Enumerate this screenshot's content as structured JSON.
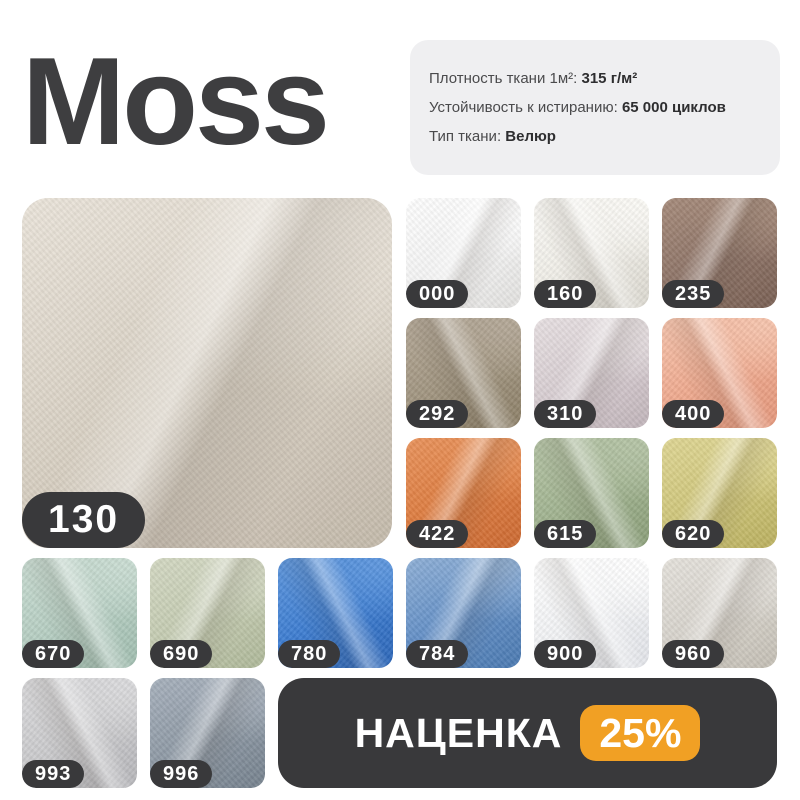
{
  "title": "Moss",
  "specs": {
    "items": [
      {
        "label": "Плотность ткани 1м²:",
        "value": "315 г/м²"
      },
      {
        "label": "Устойчивость к истиранию:",
        "value": "65 000 циклов"
      },
      {
        "label": "Тип ткани:",
        "value": "Велюр"
      }
    ]
  },
  "main_swatch": {
    "code": "130",
    "colors": {
      "light": "#EAE4DA",
      "mid": "#D9D1C4",
      "dark": "#C4BAAB"
    }
  },
  "swatches": [
    {
      "code": "000",
      "colors": {
        "light": "#FEFEFE",
        "mid": "#F5F5F5",
        "dark": "#E2E1DF"
      }
    },
    {
      "code": "160",
      "colors": {
        "light": "#FBFAF6",
        "mid": "#F1EFE9",
        "dark": "#DBD8CF"
      }
    },
    {
      "code": "235",
      "colors": {
        "light": "#A68B7B",
        "mid": "#8F7568",
        "dark": "#795F53"
      }
    },
    {
      "code": "292",
      "colors": {
        "light": "#B4A897",
        "mid": "#A29681",
        "dark": "#8C7F67"
      }
    },
    {
      "code": "310",
      "colors": {
        "light": "#E7E0E2",
        "mid": "#D8CED2",
        "dark": "#C1B4BA"
      }
    },
    {
      "code": "400",
      "colors": {
        "light": "#F7C5AE",
        "mid": "#F0AB90",
        "dark": "#E5977B"
      }
    },
    {
      "code": "422",
      "colors": {
        "light": "#E9935C",
        "mid": "#DE7D41",
        "dark": "#CC6931"
      }
    },
    {
      "code": "615",
      "colors": {
        "light": "#B5C4A6",
        "mid": "#A2B491",
        "dark": "#8A9E78"
      }
    },
    {
      "code": "620",
      "colors": {
        "light": "#DFD694",
        "mid": "#D0C77C",
        "dark": "#BBB05F"
      }
    },
    {
      "code": "670",
      "colors": {
        "light": "#CADDD3",
        "mid": "#B7CFC3",
        "dark": "#A0BDAF"
      }
    },
    {
      "code": "690",
      "colors": {
        "light": "#D3D8C3",
        "mid": "#C5CCB2",
        "dark": "#AEB899"
      }
    },
    {
      "code": "780",
      "colors": {
        "light": "#5E97DE",
        "mid": "#3E7ED2",
        "dark": "#2C66B8"
      }
    },
    {
      "code": "784",
      "colors": {
        "light": "#8FB0D6",
        "mid": "#6490C7",
        "dark": "#4A79B0"
      }
    },
    {
      "code": "900",
      "colors": {
        "light": "#FFFFFF",
        "mid": "#F3F4F6",
        "dark": "#E2E4E9"
      }
    },
    {
      "code": "960",
      "colors": {
        "light": "#E5E2DC",
        "mid": "#D8D4CD",
        "dark": "#C4BFB4"
      }
    },
    {
      "code": "993",
      "colors": {
        "light": "#DBDBDD",
        "mid": "#CCCCCE",
        "dark": "#B6B6BA"
      }
    },
    {
      "code": "996",
      "colors": {
        "light": "#A7B1BC",
        "mid": "#8F9AA6",
        "dark": "#75818D"
      }
    }
  ],
  "promo": {
    "label": "НАЦЕНКА",
    "value": "25%",
    "bar_color": "#39393B",
    "badge_color": "#F1A024"
  },
  "ui_colors": {
    "page_bg": "#FFFFFF",
    "title_text": "#3E3E40",
    "card_bg": "#EFEFF1",
    "pill_bg": "#39393B",
    "pill_text": "#FFFFFF"
  }
}
